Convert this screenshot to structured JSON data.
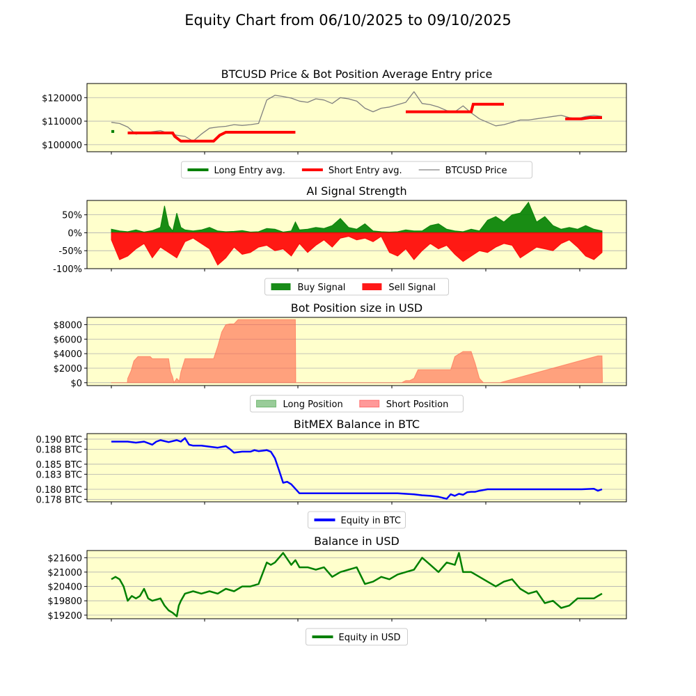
{
  "figure": {
    "title": "Equity Chart from 06/10/2025 to 09/10/2025",
    "colors": {
      "panel_bg": "#ffffcc",
      "grid": "#b0b0b0"
    }
  },
  "chart_data": [
    {
      "id": "price",
      "type": "line",
      "title": "BTCUSD Price & Bot Position Average Entry price",
      "ylim": [
        97000,
        126000
      ],
      "yticks": [
        100000,
        110000,
        120000
      ],
      "ytick_labels": [
        "$100000",
        "$110000",
        "$120000"
      ],
      "x_domain": [
        0,
        120
      ],
      "series": [
        {
          "name": "BTCUSD Price",
          "color": "#808080",
          "x": [
            0,
            2,
            4,
            6,
            8,
            10,
            12,
            14,
            16,
            18,
            20,
            22,
            24,
            26,
            28,
            30,
            32,
            34,
            36,
            38,
            40,
            42,
            44,
            46,
            48,
            50,
            52,
            54,
            56,
            58,
            60,
            62,
            64,
            66,
            68,
            70,
            72,
            74,
            76,
            78,
            80,
            82,
            84,
            86,
            88,
            90,
            92,
            94,
            96,
            98,
            100,
            102,
            104,
            106,
            108,
            110,
            112,
            114,
            116,
            118,
            120
          ],
          "y": [
            109500,
            109000,
            107500,
            104500,
            105000,
            105500,
            106000,
            104800,
            104000,
            103500,
            101500,
            104500,
            107000,
            107500,
            107800,
            108500,
            108200,
            108500,
            109000,
            119000,
            121000,
            120500,
            119800,
            118500,
            118000,
            119500,
            119000,
            117500,
            120000,
            119500,
            118500,
            115500,
            114000,
            115500,
            116000,
            117000,
            118000,
            122500,
            117500,
            117000,
            116000,
            114500,
            114000,
            116500,
            113500,
            111000,
            109500,
            108000,
            108500,
            109500,
            110500,
            110500,
            111000,
            111500,
            112000,
            112500,
            111500,
            111000,
            112000,
            112500,
            112000
          ]
        },
        {
          "name": "Long Entry avg.",
          "color": "#008000",
          "segments": [
            {
              "x": [
                0,
                0.7
              ],
              "y": [
                105600,
                105600
              ]
            }
          ]
        },
        {
          "name": "Short Entry avg.",
          "color": "#ff0000",
          "segments": [
            {
              "x": [
                4,
                15,
                15.5,
                17,
                25,
                26.5,
                28,
                45
              ],
              "y": [
                105000,
                105000,
                103500,
                101500,
                101500,
                104000,
                105300,
                105300
              ]
            },
            {
              "x": [
                72,
                88,
                88.5,
                96
              ],
              "y": [
                114000,
                114000,
                117200,
                117200
              ]
            },
            {
              "x": [
                111,
                115,
                117,
                120
              ],
              "y": [
                111000,
                111000,
                111500,
                111500
              ]
            }
          ]
        }
      ],
      "legend": {
        "placement": "below",
        "entries": [
          {
            "label": "Long Entry avg.",
            "color": "#008000",
            "kind": "line"
          },
          {
            "label": "Short Entry avg.",
            "color": "#ff0000",
            "kind": "line"
          },
          {
            "label": "BTCUSD Price",
            "color": "#808080",
            "kind": "thinline"
          }
        ]
      }
    },
    {
      "id": "signal",
      "type": "area",
      "title": "AI Signal Strength",
      "ylim": [
        -100,
        90
      ],
      "yticks": [
        -100,
        -50,
        0,
        50
      ],
      "ytick_labels": [
        "-100%",
        "-50%",
        "0%",
        "50%"
      ],
      "x_domain": [
        0,
        120
      ],
      "series": [
        {
          "name": "Buy Signal",
          "color": "#008000",
          "x": [
            0,
            2,
            4,
            6,
            8,
            10,
            12,
            13,
            14,
            15,
            16,
            17,
            18,
            20,
            22,
            24,
            26,
            28,
            30,
            32,
            34,
            36,
            38,
            40,
            42,
            44,
            45,
            46,
            48,
            50,
            52,
            54,
            56,
            58,
            60,
            62,
            64,
            66,
            68,
            70,
            72,
            74,
            76,
            78,
            80,
            82,
            84,
            86,
            88,
            90,
            92,
            94,
            96,
            98,
            100,
            102,
            104,
            106,
            108,
            110,
            112,
            114,
            116,
            118,
            120
          ],
          "y": [
            10,
            5,
            3,
            8,
            2,
            6,
            15,
            75,
            20,
            5,
            55,
            15,
            8,
            5,
            8,
            15,
            5,
            3,
            4,
            6,
            2,
            3,
            12,
            10,
            2,
            5,
            30,
            8,
            10,
            15,
            12,
            20,
            40,
            15,
            10,
            25,
            5,
            3,
            2,
            3,
            8,
            5,
            5,
            20,
            25,
            10,
            5,
            3,
            10,
            5,
            35,
            45,
            30,
            50,
            55,
            85,
            30,
            45,
            20,
            10,
            15,
            10,
            20,
            10,
            5
          ]
        },
        {
          "name": "Sell Signal",
          "color": "#ff0000",
          "x": [
            0,
            2,
            4,
            6,
            8,
            10,
            12,
            14,
            16,
            18,
            20,
            22,
            24,
            26,
            28,
            30,
            32,
            34,
            36,
            38,
            40,
            42,
            44,
            46,
            48,
            50,
            52,
            54,
            56,
            58,
            60,
            62,
            64,
            66,
            68,
            70,
            72,
            74,
            76,
            78,
            80,
            82,
            84,
            86,
            88,
            90,
            92,
            94,
            96,
            98,
            100,
            102,
            104,
            106,
            108,
            110,
            112,
            114,
            116,
            118,
            120
          ],
          "y": [
            -20,
            -75,
            -65,
            -45,
            -30,
            -70,
            -40,
            -55,
            -70,
            -25,
            -15,
            -30,
            -45,
            -90,
            -70,
            -40,
            -60,
            -55,
            -40,
            -35,
            -50,
            -45,
            -65,
            -30,
            -55,
            -35,
            -20,
            -40,
            -15,
            -10,
            -20,
            -15,
            -25,
            -10,
            -55,
            -65,
            -45,
            -75,
            -50,
            -30,
            -45,
            -35,
            -60,
            -80,
            -65,
            -50,
            -55,
            -40,
            -30,
            -35,
            -70,
            -55,
            -40,
            -45,
            -50,
            -30,
            -20,
            -40,
            -65,
            -75,
            -55
          ]
        }
      ],
      "legend": {
        "placement": "below",
        "entries": [
          {
            "label": "Buy Signal",
            "color": "#008000",
            "kind": "patch"
          },
          {
            "label": "Sell Signal",
            "color": "#ff0000",
            "kind": "patch"
          }
        ]
      }
    },
    {
      "id": "position",
      "type": "area",
      "title": "Bot Position size in USD",
      "ylim": [
        -400,
        9000
      ],
      "yticks": [
        0,
        2000,
        4000,
        6000,
        8000
      ],
      "ytick_labels": [
        "$0",
        "$2000",
        "$4000",
        "$6000",
        "$8000"
      ],
      "x_domain": [
        0,
        120
      ],
      "series": [
        {
          "name": "Short Position",
          "color": "#ff6347",
          "x": [
            0,
            3.9,
            4,
            4.8,
            5.5,
            6.5,
            9.5,
            10,
            14,
            14.5,
            15,
            15.3,
            16,
            16.6,
            17,
            17.3,
            18,
            18.5,
            25,
            26,
            27,
            28,
            29,
            30,
            31,
            32,
            45,
            45.1,
            71,
            72,
            73,
            74,
            75,
            83,
            84,
            86,
            88,
            89,
            90,
            91,
            92,
            93,
            94,
            95,
            119,
            120,
            120.1
          ],
          "y": [
            0,
            0,
            600,
            1600,
            3000,
            3600,
            3600,
            3300,
            3300,
            1500,
            800,
            0,
            600,
            200,
            1500,
            2000,
            3300,
            3300,
            3300,
            5000,
            7000,
            8000,
            8100,
            8100,
            8700,
            8700,
            8700,
            0,
            0,
            300,
            300,
            600,
            1800,
            1800,
            3600,
            4300,
            4300,
            2600,
            600,
            0,
            0,
            0,
            0,
            0,
            3700,
            3700,
            0
          ]
        }
      ],
      "legend": {
        "placement": "below",
        "entries": [
          {
            "label": "Long Position",
            "color": "#008000",
            "kind": "lightpatch"
          },
          {
            "label": "Short Position",
            "color": "#ff0000",
            "kind": "lightpatch"
          }
        ]
      }
    },
    {
      "id": "btc",
      "type": "line",
      "title": "BitMEX Balance in BTC",
      "ylim": [
        0.1775,
        0.1911
      ],
      "yticks": [
        0.178,
        0.18,
        0.183,
        0.185,
        0.188,
        0.19
      ],
      "ytick_labels": [
        "0.178 BTC",
        "0.180 BTC",
        "0.183 BTC",
        "0.185 BTC",
        "0.188 BTC",
        "0.190 BTC"
      ],
      "x_domain": [
        0,
        120
      ],
      "series": [
        {
          "name": "Equity in BTC",
          "color": "#0000ff",
          "x": [
            0,
            4,
            6,
            8,
            10,
            11,
            12,
            14,
            16,
            17,
            18,
            19,
            20,
            22,
            24,
            26,
            28,
            29,
            30,
            32,
            34,
            35,
            36,
            38,
            39,
            40,
            41,
            42,
            43,
            44,
            46,
            70,
            72,
            74,
            76,
            78,
            80,
            82,
            83,
            84,
            85,
            86,
            87,
            88,
            89,
            90,
            92,
            95,
            110,
            115,
            118,
            119,
            120
          ],
          "y": [
            0.1895,
            0.1895,
            0.1893,
            0.1895,
            0.1889,
            0.1895,
            0.1898,
            0.1894,
            0.1898,
            0.1895,
            0.1902,
            0.1889,
            0.1887,
            0.1887,
            0.1885,
            0.1883,
            0.1886,
            0.188,
            0.1873,
            0.1875,
            0.1875,
            0.1878,
            0.1876,
            0.1878,
            0.1875,
            0.1862,
            0.1838,
            0.1813,
            0.1815,
            0.181,
            0.1792,
            0.1792,
            0.1791,
            0.179,
            0.1788,
            0.1787,
            0.1785,
            0.1781,
            0.179,
            0.1787,
            0.1791,
            0.1789,
            0.1794,
            0.1795,
            0.1795,
            0.1797,
            0.18,
            0.18,
            0.18,
            0.18,
            0.1801,
            0.1797,
            0.18
          ]
        }
      ],
      "legend": {
        "placement": "below",
        "entries": [
          {
            "label": "Equity in BTC",
            "color": "#0000ff",
            "kind": "line"
          }
        ]
      }
    },
    {
      "id": "usd",
      "type": "line",
      "title": "Balance in USD",
      "ylim": [
        19050,
        21900
      ],
      "yticks": [
        19200,
        19800,
        20400,
        21000,
        21600
      ],
      "ytick_labels": [
        "$19200",
        "$19800",
        "$20400",
        "$21000",
        "$21600"
      ],
      "x_domain": [
        0,
        120
      ],
      "series": [
        {
          "name": "Equity in USD",
          "color": "#008000",
          "x": [
            0,
            1,
            2,
            3,
            4,
            5,
            6,
            7,
            8,
            9,
            10,
            12,
            13,
            14,
            15,
            16,
            16.5,
            17,
            18,
            20,
            22,
            24,
            26,
            28,
            30,
            32,
            34,
            36,
            38,
            39,
            40,
            42,
            44,
            45,
            46,
            48,
            50,
            52,
            54,
            56,
            58,
            60,
            62,
            64,
            66,
            68,
            70,
            72,
            74,
            76,
            78,
            80,
            82,
            84,
            85,
            86,
            88,
            90,
            92,
            94,
            96,
            98,
            100,
            102,
            104,
            106,
            108,
            110,
            112,
            114,
            116,
            118,
            119,
            120
          ],
          "y": [
            20700,
            20800,
            20700,
            20400,
            19800,
            20000,
            19900,
            20000,
            20300,
            19900,
            19800,
            19900,
            19600,
            19400,
            19300,
            19150,
            19600,
            19800,
            20100,
            20200,
            20100,
            20200,
            20100,
            20300,
            20200,
            20400,
            20400,
            20500,
            21400,
            21300,
            21400,
            21800,
            21300,
            21500,
            21200,
            21200,
            21100,
            21200,
            20800,
            21000,
            21100,
            21200,
            20500,
            20600,
            20800,
            20700,
            20900,
            21000,
            21100,
            21600,
            21300,
            21000,
            21400,
            21300,
            21800,
            21000,
            21000,
            20800,
            20600,
            20400,
            20600,
            20700,
            20300,
            20100,
            20200,
            19700,
            19800,
            19500,
            19600,
            19900,
            19900,
            19900,
            20000,
            20100
          ]
        }
      ],
      "legend": {
        "placement": "below",
        "entries": [
          {
            "label": "Equity in USD",
            "color": "#008000",
            "kind": "line"
          }
        ]
      }
    }
  ]
}
